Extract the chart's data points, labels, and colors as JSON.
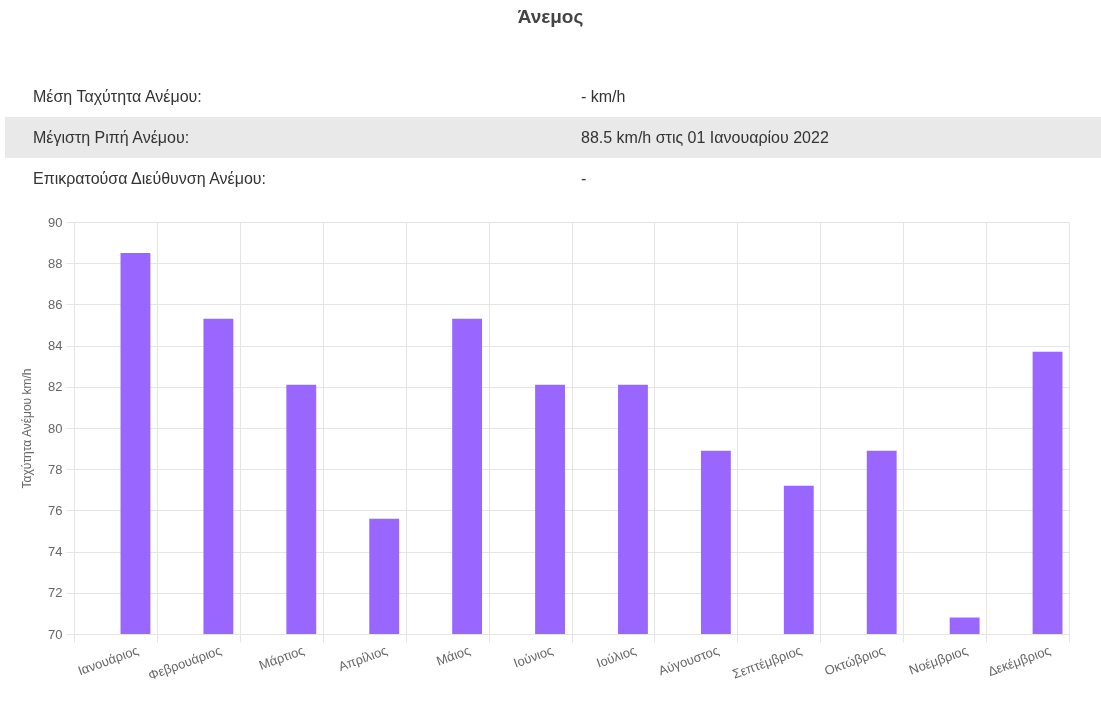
{
  "chart_data": {
    "type": "bar",
    "title": "Άνεμος",
    "annotations": [
      "Μέση Ταχύτητα Ανέμου:",
      "- km/h",
      "Μέγιστη Ριπή Ανέμου:",
      "88.5 km/h στις 01 Ιανουαρίου 2022",
      "Επικρατούσα Διεύθυνση Ανέμου:",
      "-"
    ],
    "ylabel": "Ταχύτητα Ανέμου km/h",
    "categories": [
      "Ιανουάριος",
      "Φεβρουάριος",
      "Μάρτιος",
      "Απρίλιος",
      "Μάιος",
      "Ιούνιος",
      "Ιούλιος",
      "Αύγουστος",
      "Σεπτέμβριος",
      "Οκτώβριος",
      "Νοέμβριος",
      "Δεκέμβριος"
    ],
    "values": [
      88.5,
      85.3,
      82.1,
      75.6,
      85.3,
      82.1,
      82.1,
      78.9,
      77.2,
      78.9,
      70.8,
      83.7
    ],
    "color": "#9966ff",
    "ylim": [
      70,
      90
    ],
    "yticks": [
      70,
      72,
      74,
      76,
      78,
      80,
      82,
      84,
      86,
      88,
      90
    ],
    "grid": true
  }
}
